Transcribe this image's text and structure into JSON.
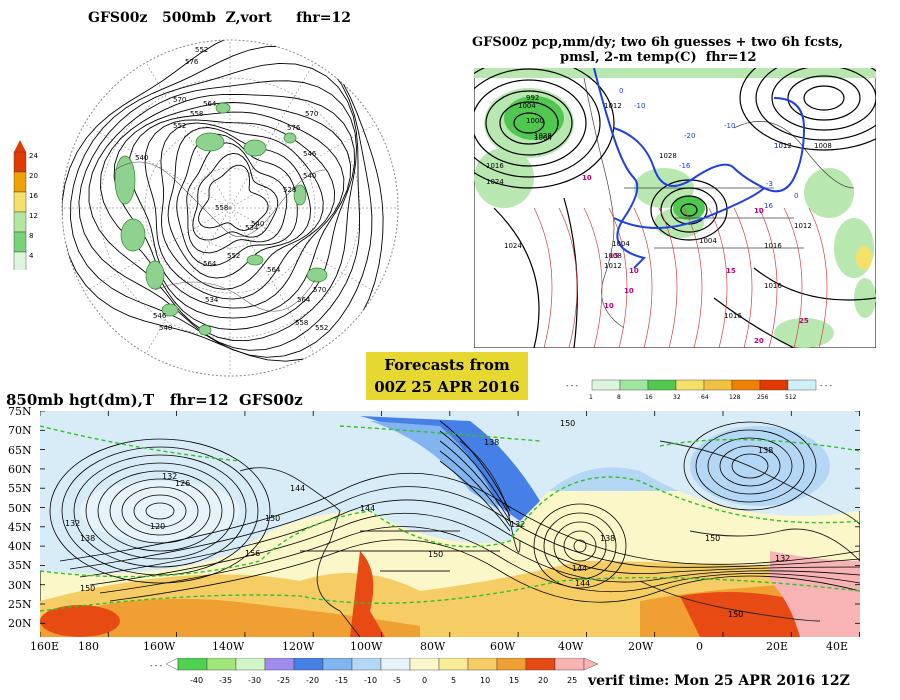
{
  "panels": {
    "polar": {
      "title": "GFS00z   500mb  Z,vort     fhr=12",
      "legend_ticks": [
        "24",
        "20",
        "16",
        "12",
        "8",
        "4"
      ],
      "legend_colors": [
        "#e03a00",
        "#f0a000",
        "#f5e16a",
        "#b4e6a0",
        "#78d278",
        "#dcf5dc"
      ],
      "contour_labels": [
        "552",
        "576",
        "564",
        "570",
        "558",
        "552",
        "540",
        "576",
        "570",
        "546",
        "540",
        "528",
        "534",
        "540",
        "552",
        "558",
        "564",
        "564",
        "570",
        "558",
        "552",
        "546",
        "540",
        "534",
        "564"
      ]
    },
    "precip": {
      "title_line1": "GFS00z pcp,mm/dy; two 6h guesses + two 6h fcsts,",
      "title_line2": "pmsl, 2-m temp(C)  fhr=12",
      "legend_ticks": [
        "1",
        "8",
        "16",
        "32",
        "64",
        "128",
        "256",
        "512"
      ],
      "legend_colors": [
        "#dcf5dc",
        "#a0e6a0",
        "#50c850",
        "#f5e16a",
        "#f0c040",
        "#f08000",
        "#e03a00",
        "#d0f0f8"
      ],
      "pressure_labels": [
        "1000",
        "1004",
        "992",
        "1012",
        "1028",
        "1024",
        "1012",
        "1016",
        "1004",
        "1008",
        "1016",
        "1012",
        "1024",
        "1028",
        "1004",
        "1016",
        "1008",
        "1004",
        "1012",
        "1016"
      ],
      "temp_labels": [
        "10",
        "15",
        "10",
        "10",
        "10",
        "10",
        "15",
        "20",
        "25"
      ],
      "blue_labels": [
        "0",
        "-10",
        "-20",
        "-10",
        "0",
        "10",
        "16",
        "-16",
        "-3"
      ]
    },
    "hgt850": {
      "title": "850mb hgt(dm),T   fhr=12  GFS00z",
      "lat_labels": [
        "75N",
        "70N",
        "65N",
        "60N",
        "55N",
        "50N",
        "45N",
        "40N",
        "35N",
        "30N",
        "25N",
        "20N"
      ],
      "lon_labels": [
        "160E",
        "180",
        "160W",
        "140W",
        "120W",
        "100W",
        "80W",
        "60W",
        "40W",
        "20W",
        "0",
        "20E",
        "40E"
      ],
      "contour_labels": [
        "132",
        "126",
        "120",
        "132",
        "138",
        "144",
        "150",
        "156",
        "144",
        "144",
        "150",
        "138",
        "132",
        "150",
        "144",
        "150",
        "138",
        "132",
        "150",
        "138",
        "150"
      ],
      "legend_ticks": [
        "-40",
        "-35",
        "-30",
        "-25",
        "-20",
        "-15",
        "-10",
        "-5",
        "0",
        "5",
        "10",
        "15",
        "20",
        "25"
      ],
      "legend_colors": [
        "#50d250",
        "#a0e678",
        "#d2f5c8",
        "#a08cf0",
        "#4680e6",
        "#82b4f0",
        "#b4d7f5",
        "#e6f3fa",
        "#fbf7c8",
        "#faeb96",
        "#f5cd64",
        "#f0a032",
        "#e84a14",
        "#f8b4b4"
      ]
    }
  },
  "forecast_box": {
    "line1": "Forecasts from",
    "line2": "00Z 25 APR 2016"
  },
  "verif_time": "verif time: Mon 25 APR 2016 12Z"
}
